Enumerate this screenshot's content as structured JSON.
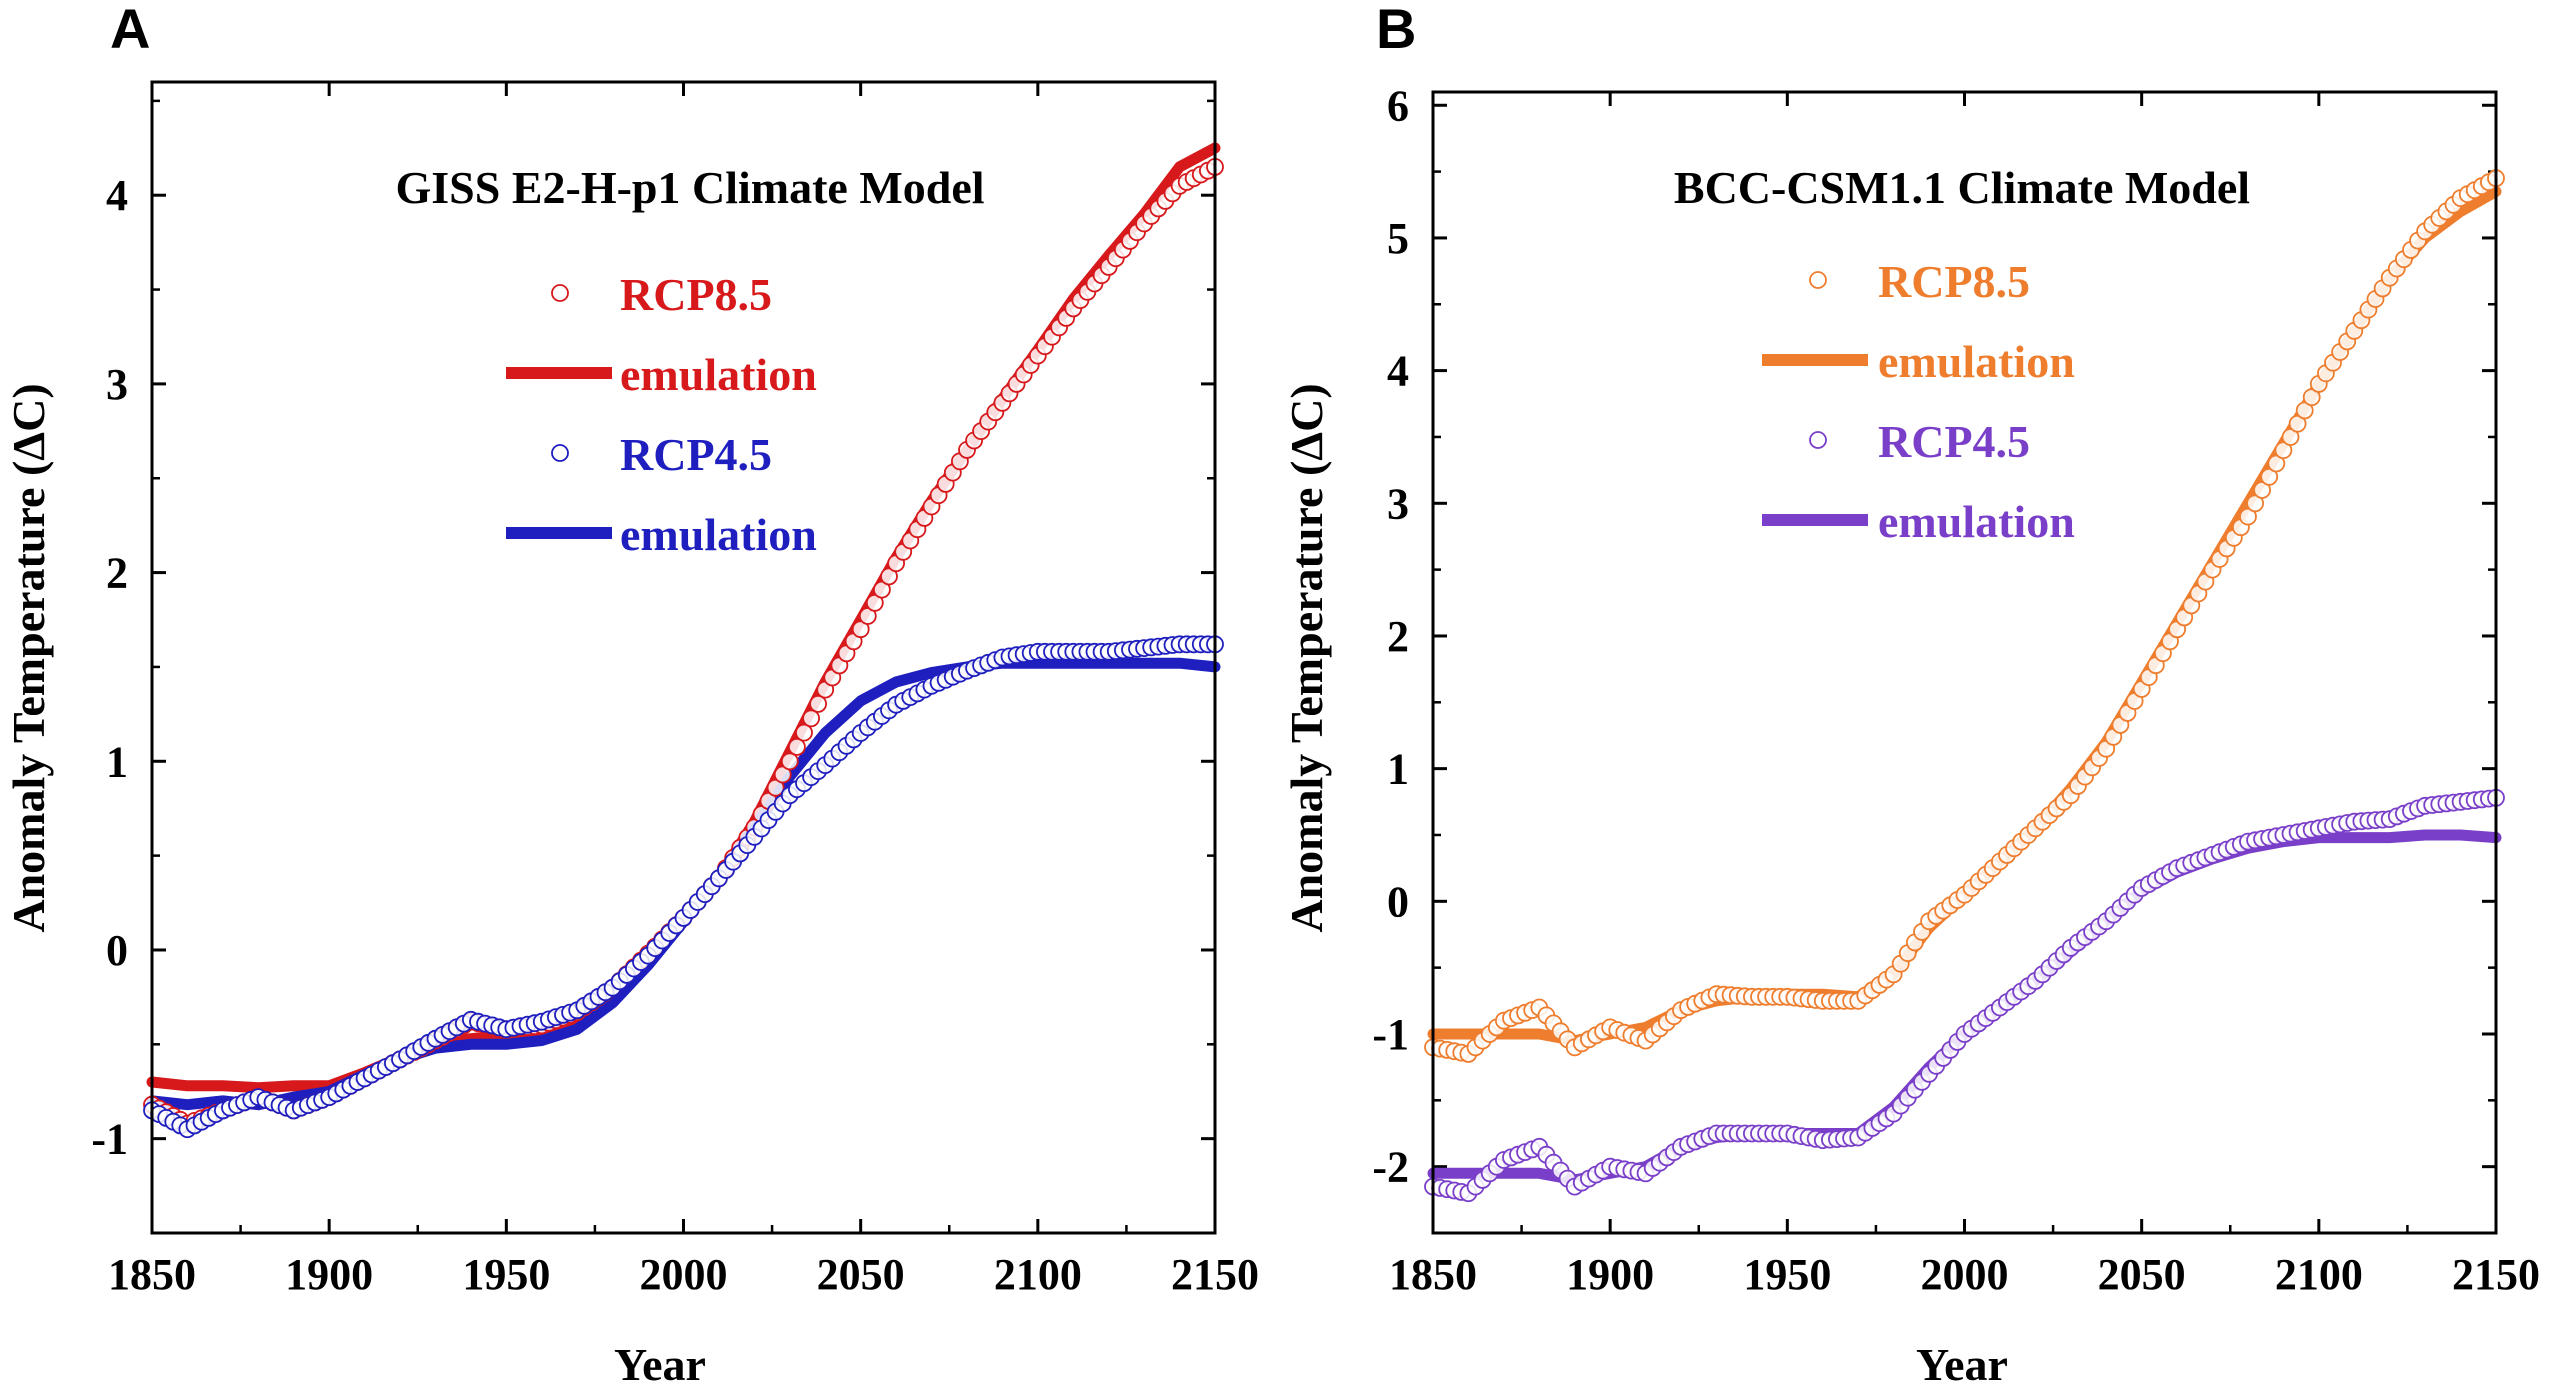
{
  "chart_data": [
    {
      "panel": "A",
      "type": "scatter",
      "title": "GISS E2-H-p1 Climate Model",
      "xlabel": "Year",
      "ylabel": "Anomaly Temperature (ΔC)",
      "xlim": [
        1850,
        2150
      ],
      "ylim": [
        -1.5,
        4.6
      ],
      "xticks": [
        1850,
        1900,
        1950,
        2000,
        2050,
        2100,
        2150
      ],
      "yticks": [
        -1,
        0,
        1,
        2,
        3,
        4
      ],
      "grid": false,
      "legend_position": "top-center",
      "series": [
        {
          "name": "RCP8.5",
          "kind": "markers",
          "color": "#d7191c",
          "x": [
            1850,
            1860,
            1870,
            1880,
            1890,
            1900,
            1910,
            1920,
            1930,
            1940,
            1950,
            1960,
            1970,
            1980,
            1990,
            2000,
            2010,
            2020,
            2030,
            2040,
            2050,
            2060,
            2070,
            2080,
            2090,
            2100,
            2110,
            2120,
            2130,
            2140,
            2150
          ],
          "y": [
            -0.82,
            -0.92,
            -0.85,
            -0.78,
            -0.85,
            -0.78,
            -0.68,
            -0.58,
            -0.48,
            -0.38,
            -0.42,
            -0.4,
            -0.33,
            -0.2,
            -0.02,
            0.17,
            0.38,
            0.65,
            1.0,
            1.38,
            1.7,
            2.05,
            2.35,
            2.65,
            2.9,
            3.15,
            3.4,
            3.62,
            3.85,
            4.05,
            4.15
          ]
        },
        {
          "name": "emulation",
          "kind": "line",
          "color": "#d7191c",
          "x": [
            1850,
            1860,
            1870,
            1880,
            1890,
            1900,
            1910,
            1920,
            1930,
            1940,
            1950,
            1960,
            1970,
            1980,
            1990,
            2000,
            2010,
            2020,
            2030,
            2040,
            2050,
            2060,
            2070,
            2080,
            2090,
            2100,
            2110,
            2120,
            2130,
            2140,
            2150
          ],
          "y": [
            -0.7,
            -0.72,
            -0.72,
            -0.73,
            -0.72,
            -0.72,
            -0.65,
            -0.57,
            -0.5,
            -0.47,
            -0.45,
            -0.43,
            -0.38,
            -0.25,
            -0.05,
            0.15,
            0.38,
            0.68,
            1.05,
            1.42,
            1.75,
            2.08,
            2.38,
            2.65,
            2.92,
            3.18,
            3.45,
            3.68,
            3.9,
            4.15,
            4.25
          ]
        },
        {
          "name": "RCP4.5",
          "kind": "markers",
          "color": "#1f1fbf",
          "x": [
            1850,
            1860,
            1870,
            1880,
            1890,
            1900,
            1910,
            1920,
            1930,
            1940,
            1950,
            1960,
            1970,
            1980,
            1990,
            2000,
            2010,
            2020,
            2030,
            2040,
            2050,
            2060,
            2070,
            2080,
            2090,
            2100,
            2110,
            2120,
            2130,
            2140,
            2150
          ],
          "y": [
            -0.85,
            -0.95,
            -0.85,
            -0.78,
            -0.85,
            -0.78,
            -0.68,
            -0.58,
            -0.47,
            -0.37,
            -0.42,
            -0.38,
            -0.32,
            -0.2,
            -0.03,
            0.17,
            0.38,
            0.6,
            0.82,
            0.98,
            1.15,
            1.3,
            1.4,
            1.48,
            1.55,
            1.58,
            1.58,
            1.58,
            1.6,
            1.62,
            1.62
          ]
        },
        {
          "name": "emulation",
          "kind": "line",
          "color": "#1f1fbf",
          "x": [
            1850,
            1860,
            1870,
            1880,
            1890,
            1900,
            1910,
            1920,
            1930,
            1940,
            1950,
            1960,
            1970,
            1980,
            1990,
            2000,
            2010,
            2020,
            2030,
            2040,
            2050,
            2060,
            2070,
            2080,
            2090,
            2100,
            2110,
            2120,
            2130,
            2140,
            2150
          ],
          "y": [
            -0.8,
            -0.82,
            -0.8,
            -0.82,
            -0.78,
            -0.75,
            -0.66,
            -0.58,
            -0.52,
            -0.5,
            -0.5,
            -0.48,
            -0.42,
            -0.28,
            -0.08,
            0.15,
            0.38,
            0.65,
            0.92,
            1.15,
            1.32,
            1.42,
            1.47,
            1.5,
            1.52,
            1.52,
            1.52,
            1.52,
            1.52,
            1.52,
            1.5
          ]
        }
      ]
    },
    {
      "panel": "B",
      "type": "scatter",
      "title": "BCC-CSM1.1 Climate Model",
      "xlabel": "Year",
      "ylabel": "Anomaly Temperature (ΔC)",
      "xlim": [
        1850,
        2150
      ],
      "ylim": [
        -2.5,
        6.1
      ],
      "xticks": [
        1850,
        1900,
        1950,
        2000,
        2050,
        2100,
        2150
      ],
      "yticks": [
        -2,
        -1,
        0,
        1,
        2,
        3,
        4,
        5,
        6
      ],
      "grid": false,
      "legend_position": "top-center",
      "series": [
        {
          "name": "RCP8.5",
          "kind": "markers",
          "color": "#ee7d2e",
          "x": [
            1850,
            1860,
            1870,
            1880,
            1890,
            1900,
            1910,
            1920,
            1930,
            1940,
            1950,
            1960,
            1970,
            1980,
            1990,
            2000,
            2010,
            2020,
            2030,
            2040,
            2050,
            2060,
            2070,
            2080,
            2090,
            2100,
            2110,
            2120,
            2130,
            2140,
            2150
          ],
          "y": [
            -1.1,
            -1.15,
            -0.9,
            -0.8,
            -1.1,
            -0.95,
            -1.05,
            -0.82,
            -0.7,
            -0.72,
            -0.72,
            -0.75,
            -0.75,
            -0.55,
            -0.15,
            0.05,
            0.3,
            0.55,
            0.8,
            1.15,
            1.6,
            2.05,
            2.5,
            2.9,
            3.4,
            3.9,
            4.3,
            4.7,
            5.05,
            5.3,
            5.45
          ]
        },
        {
          "name": "emulation",
          "kind": "line",
          "color": "#ee7d2e",
          "x": [
            1850,
            1860,
            1870,
            1880,
            1890,
            1900,
            1910,
            1920,
            1930,
            1940,
            1950,
            1960,
            1970,
            1980,
            1990,
            2000,
            2010,
            2020,
            2030,
            2040,
            2050,
            2060,
            2070,
            2080,
            2090,
            2100,
            2110,
            2120,
            2130,
            2140,
            2150
          ],
          "y": [
            -1.0,
            -1.0,
            -1.0,
            -1.0,
            -1.05,
            -1.0,
            -0.95,
            -0.82,
            -0.75,
            -0.72,
            -0.7,
            -0.7,
            -0.72,
            -0.55,
            -0.2,
            0.05,
            0.3,
            0.55,
            0.85,
            1.2,
            1.65,
            2.1,
            2.55,
            3.0,
            3.45,
            3.9,
            4.3,
            4.7,
            5.0,
            5.2,
            5.35
          ]
        },
        {
          "name": "RCP4.5",
          "kind": "markers",
          "color": "#7a3fc9",
          "x": [
            1850,
            1860,
            1870,
            1880,
            1890,
            1900,
            1910,
            1920,
            1930,
            1940,
            1950,
            1960,
            1970,
            1980,
            1990,
            2000,
            2010,
            2020,
            2030,
            2040,
            2050,
            2060,
            2070,
            2080,
            2090,
            2100,
            2110,
            2120,
            2130,
            2140,
            2150
          ],
          "y": [
            -2.15,
            -2.2,
            -1.95,
            -1.85,
            -2.15,
            -2.0,
            -2.05,
            -1.85,
            -1.75,
            -1.75,
            -1.75,
            -1.8,
            -1.78,
            -1.6,
            -1.3,
            -1.0,
            -0.8,
            -0.6,
            -0.35,
            -0.15,
            0.1,
            0.25,
            0.35,
            0.45,
            0.5,
            0.55,
            0.6,
            0.62,
            0.72,
            0.75,
            0.78
          ]
        },
        {
          "name": "emulation",
          "kind": "line",
          "color": "#7a3fc9",
          "x": [
            1850,
            1860,
            1870,
            1880,
            1890,
            1900,
            1910,
            1920,
            1930,
            1940,
            1950,
            1960,
            1970,
            1980,
            1990,
            2000,
            2010,
            2020,
            2030,
            2040,
            2050,
            2060,
            2070,
            2080,
            2090,
            2100,
            2110,
            2120,
            2130,
            2140,
            2150
          ],
          "y": [
            -2.05,
            -2.05,
            -2.05,
            -2.05,
            -2.1,
            -2.05,
            -2.0,
            -1.85,
            -1.78,
            -1.75,
            -1.75,
            -1.75,
            -1.75,
            -1.55,
            -1.25,
            -1.0,
            -0.8,
            -0.6,
            -0.38,
            -0.15,
            0.08,
            0.22,
            0.32,
            0.4,
            0.45,
            0.48,
            0.48,
            0.48,
            0.5,
            0.5,
            0.48
          ]
        }
      ]
    }
  ]
}
